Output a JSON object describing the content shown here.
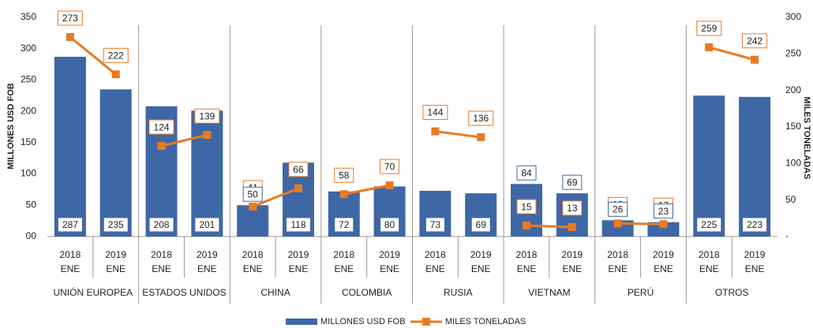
{
  "chart_data": {
    "type": "combo",
    "groups": [
      "UNIÓN EUROPEA",
      "ESTADOS UNIDOS",
      "CHINA",
      "COLOMBIA",
      "RUSIA",
      "VIETNAM",
      "PERÚ",
      "OTROS"
    ],
    "categories": [
      "2018",
      "2019",
      "2018",
      "2019",
      "2018",
      "2019",
      "2018",
      "2019",
      "2018",
      "2019",
      "2018",
      "2019",
      "2018",
      "2019",
      "2018",
      "2019"
    ],
    "category_months": [
      "ENE",
      "ENE",
      "ENE",
      "ENE",
      "ENE",
      "ENE",
      "ENE",
      "ENE",
      "ENE",
      "ENE",
      "ENE",
      "ENE",
      "ENE",
      "ENE",
      "ENE",
      "ENE"
    ],
    "series": [
      {
        "name": "MILLONES USD FOB",
        "type": "bar",
        "color": "#3e67a6",
        "values": [
          287,
          235,
          208,
          201,
          50,
          118,
          72,
          80,
          73,
          69,
          84,
          69,
          26,
          23,
          225,
          223
        ]
      },
      {
        "name": "MILES TONELADAS",
        "type": "line",
        "axis": "y2",
        "color": "#ea7a22",
        "values": [
          273,
          222,
          124,
          139,
          41,
          66,
          58,
          70,
          144,
          136,
          15,
          13,
          18,
          17,
          259,
          242
        ]
      }
    ],
    "ylabel": "MILLONES USD FOB",
    "y2label": "MILES TONELADAS",
    "ylim": [
      0,
      350
    ],
    "yticks": [
      {
        "value": 0,
        "label": "00"
      },
      50,
      100,
      150,
      200,
      250,
      300,
      350
    ],
    "y2lim": [
      0,
      300
    ],
    "y2ticks": [
      {
        "value": 0,
        "label": "-"
      },
      50,
      100,
      150,
      200,
      250,
      300
    ],
    "legend": "bottom"
  }
}
